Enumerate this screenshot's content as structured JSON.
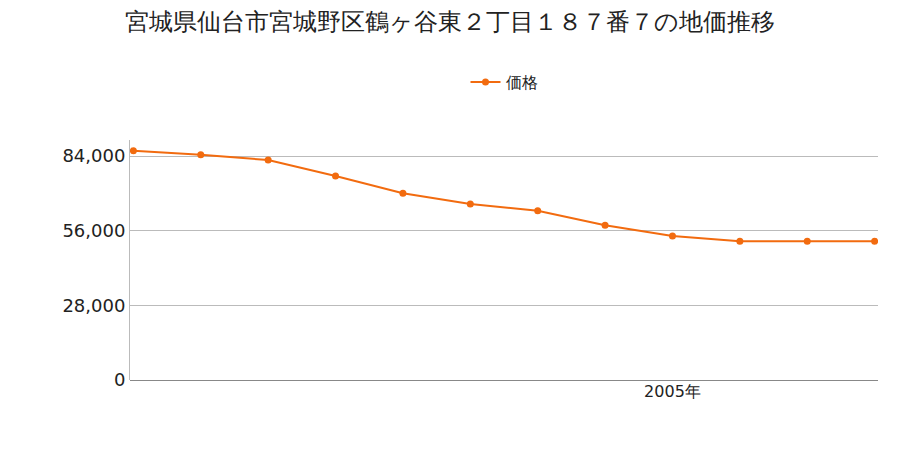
{
  "chart_data": {
    "type": "line",
    "title": "宮城県仙台市宮城野区鶴ヶ谷東２丁目１８７番７の地価推移",
    "categories": [
      null,
      null,
      null,
      null,
      null,
      null,
      null,
      null,
      "2005年",
      null,
      null,
      null
    ],
    "series": [
      {
        "name": "価格",
        "color": "#f26b0f",
        "marker": "circle",
        "values": [
          86000,
          84500,
          82500,
          76500,
          70000,
          66000,
          63500,
          58000,
          54000,
          52000,
          52000,
          52000
        ]
      }
    ],
    "ylim": [
      0,
      90000
    ],
    "yticks": [
      0,
      {
        "value": 28000,
        "label": "28,000"
      },
      {
        "value": 56000,
        "label": "56,000"
      },
      {
        "value": 84000,
        "label": "84,000"
      }
    ],
    "grid": true,
    "legend": "top"
  }
}
